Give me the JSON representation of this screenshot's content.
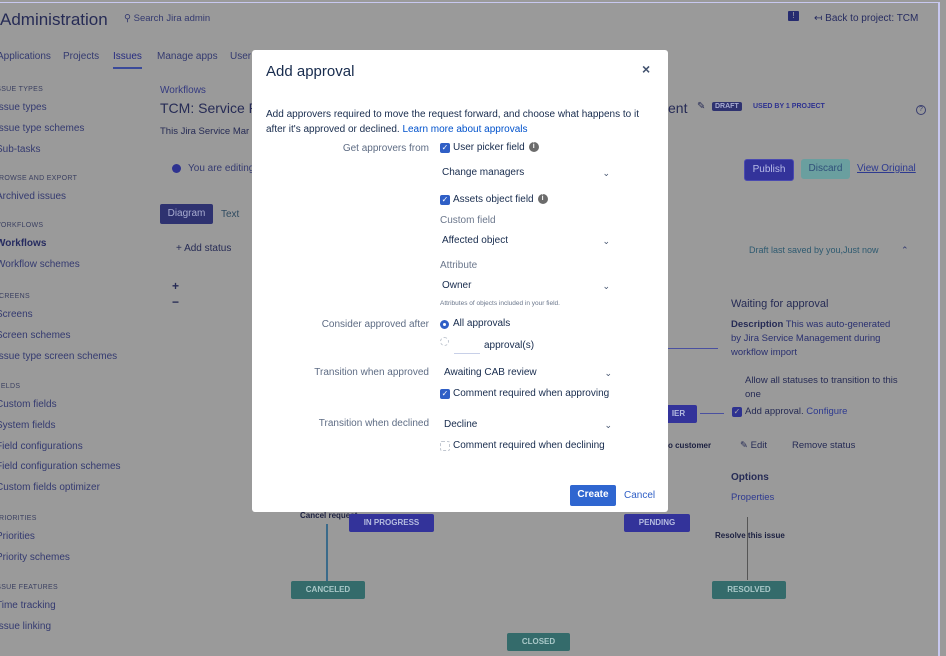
{
  "header": {
    "title": "Administration",
    "search_placeholder": "Search Jira admin",
    "back_link": "Back to project: TCM"
  },
  "nav_tabs": [
    {
      "label": "Applications"
    },
    {
      "label": "Projects"
    },
    {
      "label": "Issues",
      "active": true
    },
    {
      "label": "Manage apps"
    },
    {
      "label": "User"
    }
  ],
  "sidebar": {
    "sections": [
      {
        "title": "Issue types",
        "items": [
          "Issue types",
          "Issue type schemes",
          "Sub-tasks"
        ]
      },
      {
        "title": "Browse and export",
        "items": [
          "Archived issues"
        ]
      },
      {
        "title": "Workflows",
        "items": [
          "Workflows",
          "Workflow schemes"
        ]
      },
      {
        "title": "Screens",
        "items": [
          "Screens",
          "Screen schemes",
          "Issue type screen schemes"
        ]
      },
      {
        "title": "Fields",
        "items": [
          "Custom fields",
          "System fields",
          "Field configurations",
          "Field configuration schemes",
          "Custom fields optimizer"
        ]
      },
      {
        "title": "Priorities",
        "items": [
          "Priorities",
          "Priority schemes"
        ]
      },
      {
        "title": "Issue features",
        "items": [
          "Time tracking",
          "Issue linking"
        ]
      }
    ]
  },
  "main": {
    "breadcrumb": "Workflows",
    "title_start": "TCM: Service R",
    "title_end": "ent",
    "draft_badge": "DRAFT",
    "used_by": "USED BY 1 PROJECT",
    "description": "This Jira Service Mar",
    "editing_notice": "You are editing",
    "publish": "Publish",
    "discard": "Discard",
    "view_original": "View Original",
    "view_tabs": [
      "Diagram",
      "Text"
    ],
    "add_status": "Add status",
    "zoom_in": "+",
    "zoom_out": "−",
    "draft_saved": "Draft last saved by you,Just now"
  },
  "diagram": {
    "nodes": [
      "IN PROGRESS",
      "PENDING",
      "CANCELED",
      "RESOLVED",
      "CLOSED",
      "IER"
    ],
    "transitions": [
      "Cancel request",
      "Resolve this issue",
      "o customer"
    ]
  },
  "status_panel": {
    "title": "Waiting for approval",
    "description_label": "Description",
    "description": "This was auto-generated by Jira Service Management during workflow import",
    "allow_all": "Allow all statuses to transition to this one",
    "add_approval": "Add approval.",
    "configure": "Configure",
    "edit": "Edit",
    "remove_status": "Remove status",
    "options": "Options",
    "properties": "Properties"
  },
  "modal": {
    "title": "Add approval",
    "intro": "Add approvers required to move the request forward, and choose what happens to it after it's approved or declined.",
    "learn_more": "Learn more about approvals",
    "get_approvers_label": "Get approvers from",
    "user_picker": "User picker field",
    "user_picker_value": "Change managers",
    "assets_field": "Assets object field",
    "custom_field_label": "Custom field",
    "custom_field_value": "Affected object",
    "attribute_label": "Attribute",
    "attribute_value": "Owner",
    "attribute_help": "Attributes of objects included in your field.",
    "consider_label": "Consider approved after",
    "all_approvals": "All approvals",
    "approvals_count_value": "",
    "approvals_suffix": "approval(s)",
    "approved_label": "Transition when approved",
    "approved_value": "Awaiting CAB review",
    "comment_approving": "Comment required when approving",
    "declined_label": "Transition when declined",
    "declined_value": "Decline",
    "comment_declining": "Comment required when declining",
    "create": "Create",
    "cancel": "Cancel"
  }
}
